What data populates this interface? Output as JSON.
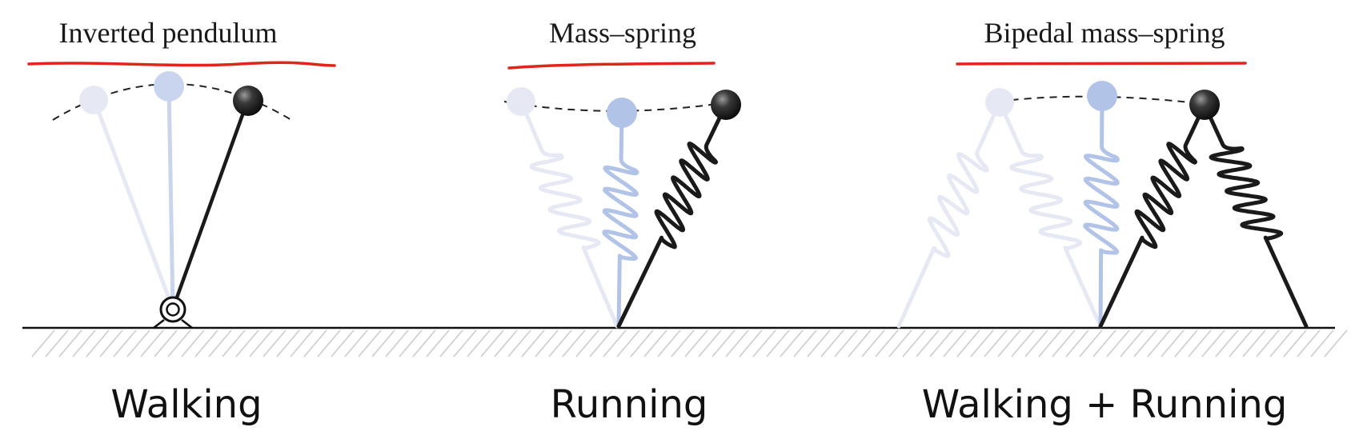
{
  "panels": [
    {
      "title": "Inverted pendulum",
      "caption": "Walking"
    },
    {
      "title": "Mass–spring",
      "caption": "Running"
    },
    {
      "title": "Bipedal mass–spring",
      "caption": "Walking + Running"
    }
  ],
  "colors": {
    "underline": "#e0251b",
    "ghost_light": "#e6e9f4",
    "ghost_mid": "#c9d5ee",
    "ghost_blue": "#b1c3e6",
    "dark": "#1a1a1a",
    "ground_hatch": "#c9c9c9"
  }
}
